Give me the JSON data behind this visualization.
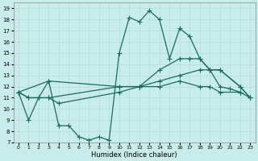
{
  "title": "",
  "xlabel": "Humidex (Indice chaleur)",
  "background_color": "#c8ece9",
  "grid_color": "#b8dcd8",
  "line_color": "#1a6b62",
  "xlim": [
    -0.5,
    23.5
  ],
  "ylim": [
    7,
    19.5
  ],
  "yticks": [
    7,
    8,
    9,
    10,
    11,
    12,
    13,
    14,
    15,
    16,
    17,
    18,
    19
  ],
  "xticks": [
    0,
    1,
    2,
    3,
    4,
    5,
    6,
    7,
    8,
    9,
    10,
    11,
    12,
    13,
    14,
    15,
    16,
    17,
    18,
    19,
    20,
    21,
    22,
    23
  ],
  "series": [
    {
      "x": [
        0,
        1,
        2,
        3,
        4,
        5,
        6,
        7,
        8,
        9,
        10,
        11,
        12,
        13,
        14,
        15,
        16,
        17,
        18,
        19,
        20,
        21,
        22
      ],
      "y": [
        11.5,
        9.0,
        11.0,
        12.5,
        8.5,
        8.5,
        7.5,
        7.2,
        7.5,
        7.2,
        15.0,
        18.2,
        17.8,
        18.8,
        18.0,
        14.5,
        17.2,
        16.5,
        14.5,
        13.5,
        12.0,
        11.8,
        11.5
      ]
    },
    {
      "x": [
        0,
        3,
        10,
        12,
        14,
        16,
        17,
        18,
        19,
        20,
        22,
        23
      ],
      "y": [
        11.5,
        12.5,
        12.0,
        12.0,
        13.5,
        14.5,
        14.5,
        14.5,
        13.5,
        13.5,
        12.0,
        11.0
      ]
    },
    {
      "x": [
        0,
        1,
        3,
        10,
        12,
        14,
        16,
        18,
        19,
        20,
        22,
        23
      ],
      "y": [
        11.5,
        11.0,
        11.0,
        12.0,
        12.0,
        12.5,
        13.0,
        13.5,
        13.5,
        13.5,
        12.0,
        11.0
      ]
    },
    {
      "x": [
        0,
        1,
        2,
        3,
        4,
        10,
        12,
        14,
        16,
        18,
        19,
        20,
        22,
        23
      ],
      "y": [
        11.5,
        11.0,
        11.0,
        11.0,
        10.5,
        11.5,
        12.0,
        12.0,
        12.5,
        12.0,
        12.0,
        11.5,
        11.5,
        11.0
      ]
    }
  ],
  "marker": "+",
  "markersize": 4.0,
  "linewidth": 0.9
}
